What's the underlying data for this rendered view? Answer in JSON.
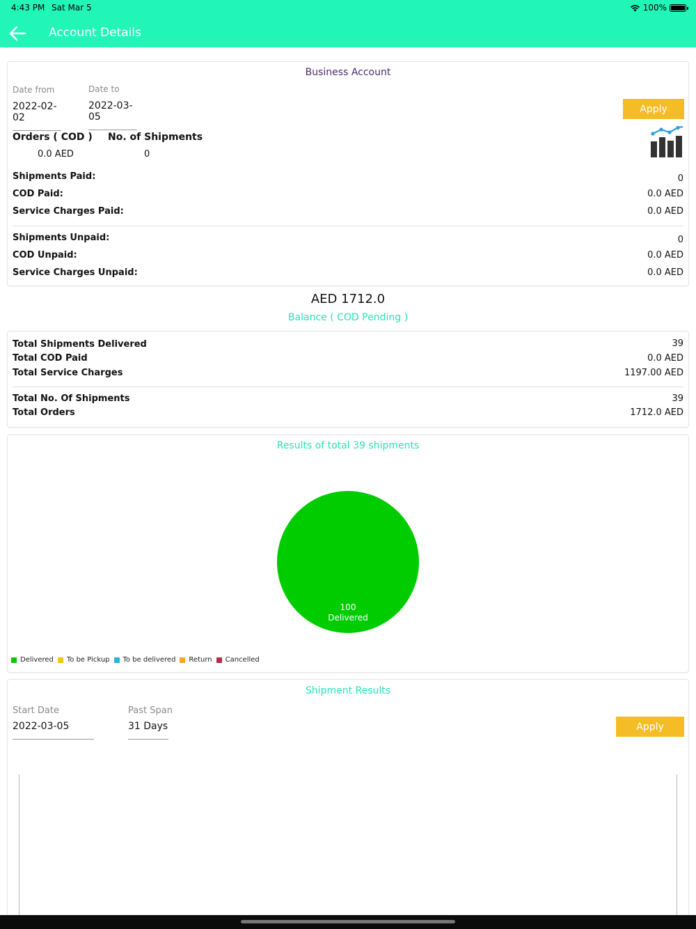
{
  "status_bar": {
    "time": "4:43 PM",
    "date": "Sat Mar 5",
    "battery": "100%"
  },
  "header": {
    "title": "Account Details",
    "back_icon": "arrow-left-icon"
  },
  "business_account": {
    "title": "Business Account",
    "date_from_label": "Date from",
    "date_from_value": "2022-02-02",
    "date_to_label": "Date to",
    "date_to_value": "2022-03-05",
    "apply_label": "Apply",
    "orders_label": "Orders ( COD )",
    "orders_value": "0.0 AED",
    "shipments_label": "No. of Shipments",
    "shipments_value": "0",
    "stats_icon": "bar-chart-icon",
    "paid_rows": [
      {
        "label": "Shipments Paid:",
        "value": "0"
      },
      {
        "label": "COD Paid:",
        "value": "0.0 AED"
      },
      {
        "label": "Service Charges Paid:",
        "value": "0.0 AED"
      }
    ],
    "unpaid_rows": [
      {
        "label": "Shipments Unpaid:",
        "value": "0"
      },
      {
        "label": "COD Unpaid:",
        "value": "0.0 AED"
      },
      {
        "label": "Service Charges Unpaid:",
        "value": "0.0 AED"
      }
    ]
  },
  "balance": {
    "amount": "AED 1712.0",
    "label": "Balance ( COD Pending )"
  },
  "totals": {
    "group1": [
      {
        "label": "Total Shipments Delivered",
        "value": "39"
      },
      {
        "label": "Total COD Paid",
        "value": "0.0 AED"
      },
      {
        "label": "Total Service Charges",
        "value": "1197.00 AED"
      }
    ],
    "group2": [
      {
        "label": "Total No. Of Shipments",
        "value": "39"
      },
      {
        "label": "Total Orders",
        "value": "1712.0 AED"
      }
    ]
  },
  "results": {
    "title": "Results of total 39 shipments",
    "chart_data": {
      "type": "pie",
      "title": "Results of total 39 shipments",
      "slices": [
        {
          "label": "Delivered",
          "value": 100,
          "color": "#00cc00"
        }
      ],
      "legend_position": "bottom-left",
      "legend": [
        {
          "label": "Delivered",
          "color": "#00cc00"
        },
        {
          "label": "To be Pickup",
          "color": "#f5c518"
        },
        {
          "label": "To be delivered",
          "color": "#29b6d8"
        },
        {
          "label": "Return",
          "color": "#f5a623"
        },
        {
          "label": "Cancelled",
          "color": "#b0304a"
        }
      ]
    }
  },
  "shipment_results": {
    "title": "Shipment Results",
    "start_date_label": "Start Date",
    "start_date_value": "2022-03-05",
    "past_span_label": "Past Span",
    "past_span_value": "31 Days",
    "apply_label": "Apply"
  },
  "colors": {
    "header": "#22f5b8",
    "accent": "#22e6b8",
    "apply": "#f5bd25",
    "title_purple": "#4b2a6e"
  }
}
